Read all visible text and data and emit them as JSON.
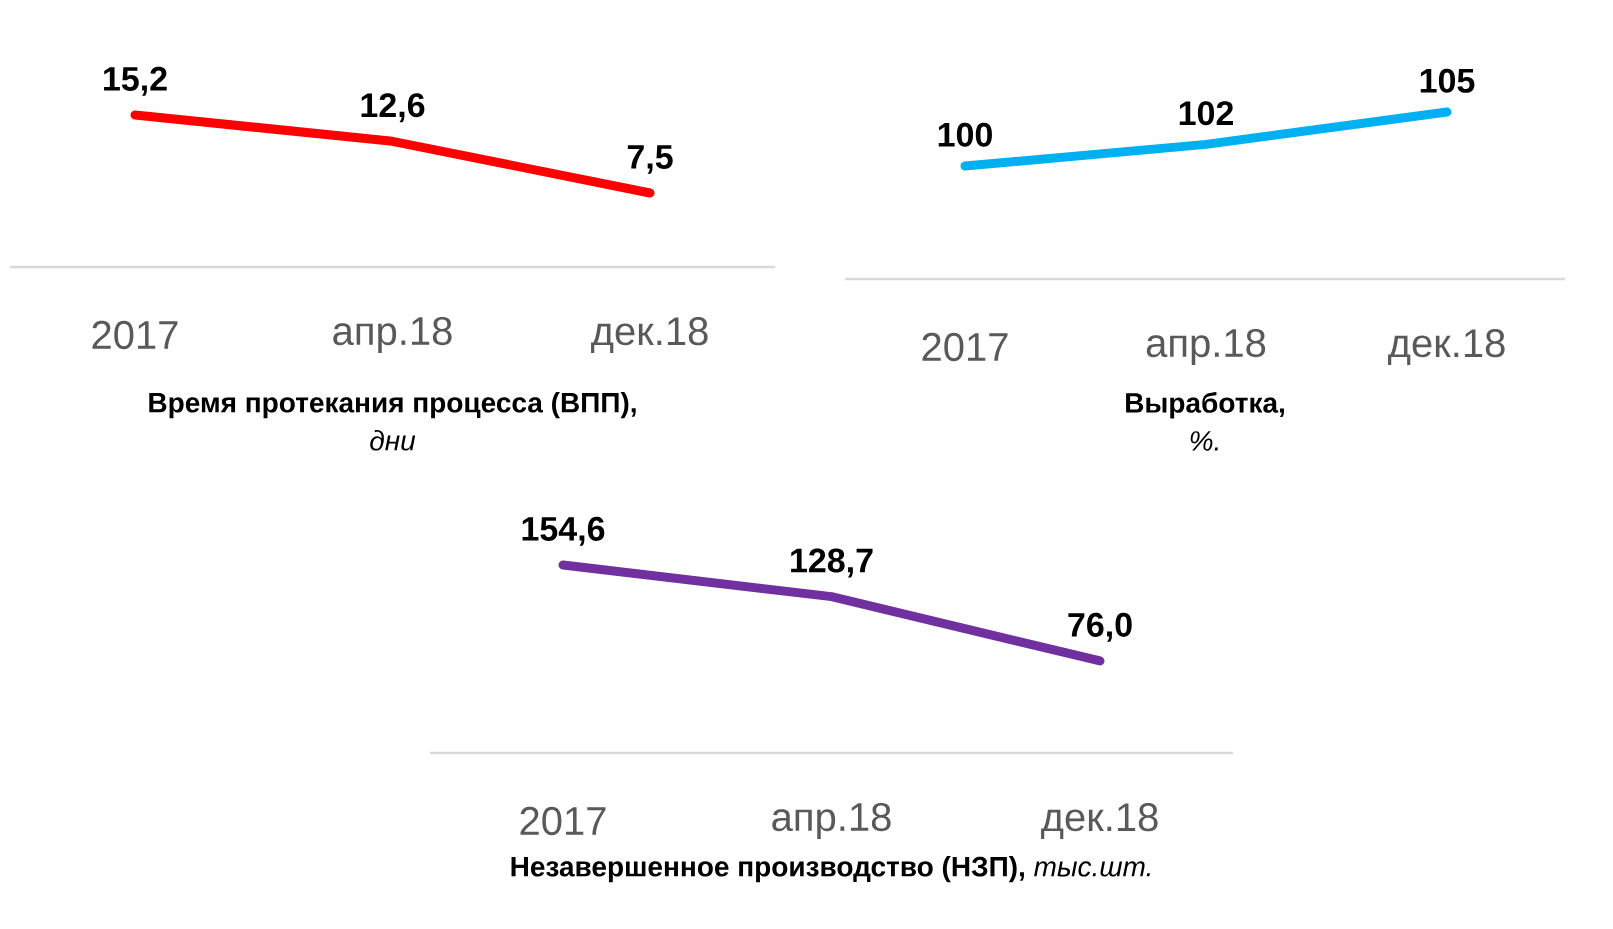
{
  "chart_data": [
    {
      "type": "line",
      "title": "Время протекания процесса (ВПП),",
      "subtitle": "дни",
      "categories": [
        "2017",
        "апр.18",
        "дек.18"
      ],
      "values": [
        15.2,
        12.6,
        7.5
      ],
      "value_labels": [
        "15,2",
        "12,6",
        "7,5"
      ],
      "color": "#ff0000",
      "tick_labels": "x"
    },
    {
      "type": "line",
      "title": "Выработка,",
      "subtitle": "%.",
      "categories": [
        "2017",
        "апр.18",
        "дек.18"
      ],
      "values": [
        100,
        102,
        105
      ],
      "value_labels": [
        "100",
        "102",
        "105"
      ],
      "color": "#00b0f0",
      "tick_labels": "x"
    },
    {
      "type": "line",
      "title": "Незавершенное производство (НЗП),",
      "subtitle": "тыс.шт.",
      "categories": [
        "2017",
        "апр.18",
        "дек.18"
      ],
      "values": [
        154.6,
        128.7,
        76.0
      ],
      "value_labels": [
        "154,6",
        "128,7",
        "76,0"
      ],
      "color": "#7030a0",
      "tick_labels": "x"
    }
  ]
}
